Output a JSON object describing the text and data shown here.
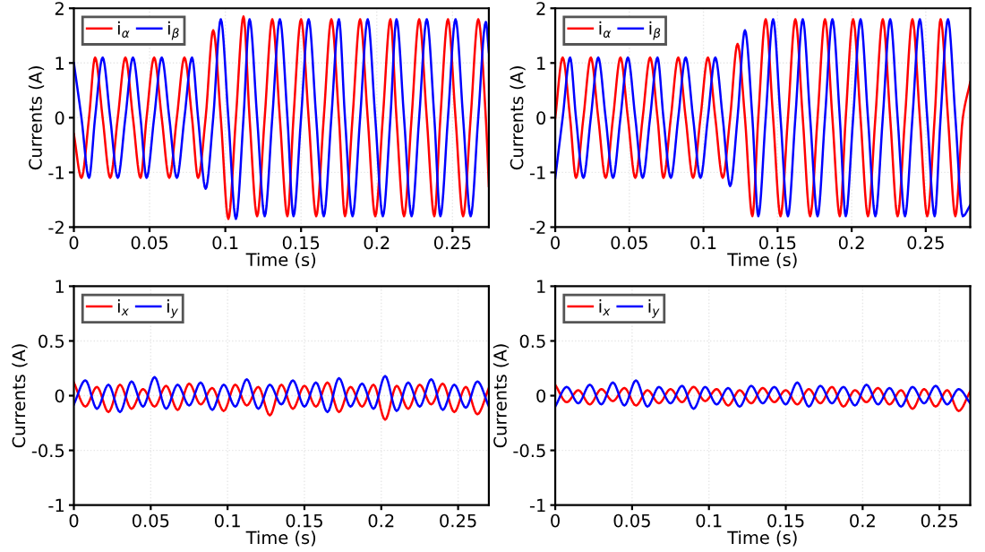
{
  "chart_data": [
    {
      "type": "line",
      "xlabel": "Time (s)",
      "ylabel": "Currents (A)",
      "xlim": [
        0,
        0.274
      ],
      "ylim": [
        -2,
        2
      ],
      "xticks": [
        0,
        0.05,
        0.1,
        0.15,
        0.2,
        0.25
      ],
      "yticks": [
        -2,
        -1,
        0,
        1,
        2
      ],
      "grid": true,
      "legend": "top left",
      "x": [
        0,
        0.005,
        0.01,
        0.014,
        0.019,
        0.024,
        0.029,
        0.034,
        0.039,
        0.044,
        0.048,
        0.053,
        0.058,
        0.063,
        0.068,
        0.073,
        0.078,
        0.082,
        0.087,
        0.092,
        0.097,
        0.102,
        0.107,
        0.112,
        0.116,
        0.121,
        0.126,
        0.131,
        0.136,
        0.141,
        0.145,
        0.15,
        0.155,
        0.16,
        0.165,
        0.17,
        0.175,
        0.179,
        0.184,
        0.189,
        0.194,
        0.199,
        0.204,
        0.209,
        0.213,
        0.218,
        0.223,
        0.228,
        0.233,
        0.238,
        0.242,
        0.247,
        0.252,
        0.257,
        0.262,
        0.267,
        0.272,
        0.274
      ],
      "series": [
        {
          "name": "i$_{α}$",
          "color": "#ff0000",
          "values": [
            -0.3,
            -1.1,
            0,
            1.1,
            0,
            -1.1,
            0,
            1.1,
            0,
            -1.1,
            0,
            1.1,
            0,
            -1.1,
            0,
            1.1,
            0,
            -1.1,
            0,
            1.6,
            0,
            -1.85,
            0,
            1.85,
            0,
            -1.8,
            0,
            1.8,
            0,
            -1.8,
            0,
            1.8,
            0,
            -1.8,
            0,
            1.8,
            0,
            -1.8,
            0,
            1.8,
            0,
            -1.8,
            0,
            1.8,
            0,
            -1.8,
            0,
            1.8,
            0,
            -1.8,
            0,
            1.8,
            0,
            -1.8,
            0,
            1.8,
            0,
            -1.25
          ]
        },
        {
          "name": "i$_{β}$",
          "color": "#0000ff",
          "values": [
            1.0,
            0,
            -1.1,
            0,
            1.1,
            0,
            -1.1,
            0,
            1.1,
            0,
            -1.1,
            0,
            1.1,
            0,
            -1.1,
            0,
            1.1,
            0,
            -1.3,
            0,
            1.8,
            0,
            -1.85,
            0,
            1.8,
            0,
            -1.8,
            0,
            1.8,
            0,
            -1.8,
            0,
            1.8,
            0,
            -1.8,
            0,
            1.8,
            0,
            -1.8,
            0,
            1.8,
            0,
            -1.8,
            0,
            1.8,
            0,
            -1.8,
            0,
            1.8,
            0,
            -1.8,
            0,
            1.8,
            0,
            -1.8,
            0,
            1.75,
            1.2
          ]
        }
      ]
    },
    {
      "type": "line",
      "xlabel": "Time (s)",
      "ylabel": "Currents (A)",
      "xlim": [
        0,
        0.28
      ],
      "ylim": [
        -2,
        2
      ],
      "xticks": [
        0,
        0.05,
        0.1,
        0.15,
        0.2,
        0.25
      ],
      "yticks": [
        -2,
        -1,
        0,
        1,
        2
      ],
      "grid": true,
      "legend": "top left",
      "x": [
        0,
        0.005,
        0.01,
        0.014,
        0.019,
        0.024,
        0.029,
        0.034,
        0.039,
        0.044,
        0.049,
        0.054,
        0.059,
        0.064,
        0.069,
        0.073,
        0.078,
        0.083,
        0.088,
        0.093,
        0.098,
        0.103,
        0.108,
        0.113,
        0.118,
        0.123,
        0.128,
        0.133,
        0.137,
        0.142,
        0.147,
        0.152,
        0.157,
        0.162,
        0.167,
        0.172,
        0.177,
        0.182,
        0.187,
        0.192,
        0.196,
        0.201,
        0.206,
        0.211,
        0.216,
        0.221,
        0.226,
        0.231,
        0.236,
        0.241,
        0.246,
        0.251,
        0.256,
        0.26,
        0.265,
        0.27,
        0.275,
        0.28
      ],
      "series": [
        {
          "name": "i$_{α}$",
          "color": "#ff0000",
          "values": [
            0,
            1.1,
            0,
            -1.1,
            0,
            1.1,
            0,
            -1.1,
            0,
            1.1,
            0,
            -1.1,
            0,
            1.1,
            0,
            -1.1,
            0,
            1.1,
            0,
            -1.1,
            0,
            1.1,
            0,
            -1.1,
            0,
            1.35,
            0,
            -1.8,
            0,
            1.8,
            0,
            -1.8,
            0,
            1.8,
            0,
            -1.8,
            0,
            1.8,
            0,
            -1.8,
            0,
            1.8,
            0,
            -1.8,
            0,
            1.8,
            0,
            -1.8,
            0,
            1.8,
            0,
            -1.8,
            0,
            1.8,
            0,
            -1.8,
            0,
            0.65
          ]
        },
        {
          "name": "i$_{β}$",
          "color": "#0000ff",
          "values": [
            -1.1,
            0,
            1.1,
            0,
            -1.1,
            0,
            1.1,
            0,
            -1.1,
            0,
            1.1,
            0,
            -1.1,
            0,
            1.1,
            0,
            -1.1,
            0,
            1.1,
            0,
            -1.1,
            0,
            1.1,
            0,
            -1.25,
            0,
            1.6,
            0,
            -1.8,
            0,
            1.8,
            0,
            -1.8,
            0,
            1.8,
            0,
            -1.8,
            0,
            1.8,
            0,
            -1.8,
            0,
            1.8,
            0,
            -1.8,
            0,
            1.8,
            0,
            -1.8,
            0,
            1.8,
            0,
            -1.8,
            0,
            1.8,
            0,
            -1.8,
            -1.6
          ]
        }
      ]
    },
    {
      "type": "line",
      "xlabel": "Time (s)",
      "ylabel": "Currents (A)",
      "xlim": [
        0,
        0.27
      ],
      "ylim": [
        -1,
        1
      ],
      "xticks": [
        0,
        0.05,
        0.1,
        0.15,
        0.2,
        0.25
      ],
      "yticks": [
        -1,
        -0.5,
        0,
        0.5,
        1
      ],
      "grid": true,
      "legend": "top left",
      "x": [
        0,
        0.0075,
        0.015,
        0.0225,
        0.03,
        0.0375,
        0.045,
        0.0525,
        0.06,
        0.0675,
        0.075,
        0.0825,
        0.09,
        0.0975,
        0.105,
        0.1125,
        0.12,
        0.1275,
        0.135,
        0.1425,
        0.15,
        0.1575,
        0.165,
        0.1725,
        0.18,
        0.1875,
        0.195,
        0.2025,
        0.21,
        0.2175,
        0.225,
        0.2325,
        0.24,
        0.2475,
        0.255,
        0.2625,
        0.27
      ],
      "series": [
        {
          "name": "i$_{x}$",
          "color": "#ff0000",
          "values": [
            0.12,
            -0.1,
            0.08,
            -0.15,
            0.1,
            -0.12,
            0.06,
            -0.1,
            0.09,
            -0.13,
            0.11,
            -0.08,
            0.07,
            -0.14,
            0.1,
            -0.09,
            0.08,
            -0.18,
            0.1,
            -0.12,
            0.09,
            -0.1,
            0.12,
            -0.15,
            0.08,
            -0.1,
            0.1,
            -0.22,
            0.09,
            -0.12,
            0.1,
            -0.08,
            0.11,
            -0.15,
            0.08,
            -0.17,
            0.07
          ]
        },
        {
          "name": "i$_{y}$",
          "color": "#0000ff",
          "values": [
            -0.08,
            0.14,
            -0.12,
            0.1,
            -0.15,
            0.13,
            -0.1,
            0.17,
            -0.12,
            0.1,
            -0.09,
            0.12,
            -0.13,
            0.1,
            -0.1,
            0.15,
            -0.12,
            0.1,
            -0.08,
            0.14,
            -0.1,
            0.12,
            -0.15,
            0.16,
            -0.1,
            0.11,
            -0.12,
            0.18,
            -0.14,
            0.12,
            -0.1,
            0.15,
            -0.13,
            0.1,
            -0.11,
            0.13,
            -0.1
          ]
        }
      ]
    },
    {
      "type": "line",
      "xlabel": "Time (s)",
      "ylabel": "Currents (A)",
      "xlim": [
        0,
        0.27
      ],
      "ylim": [
        -1,
        1
      ],
      "xticks": [
        0,
        0.05,
        0.1,
        0.15,
        0.2,
        0.25
      ],
      "yticks": [
        -1,
        -0.5,
        0,
        0.5,
        1
      ],
      "grid": true,
      "legend": "top left",
      "x": [
        0,
        0.0075,
        0.015,
        0.0225,
        0.03,
        0.0375,
        0.045,
        0.0525,
        0.06,
        0.0675,
        0.075,
        0.0825,
        0.09,
        0.0975,
        0.105,
        0.1125,
        0.12,
        0.1275,
        0.135,
        0.1425,
        0.15,
        0.1575,
        0.165,
        0.1725,
        0.18,
        0.1875,
        0.195,
        0.2025,
        0.21,
        0.2175,
        0.225,
        0.2325,
        0.24,
        0.2475,
        0.255,
        0.2625,
        0.27
      ],
      "series": [
        {
          "name": "i$_{x}$",
          "color": "#ff0000",
          "values": [
            0.1,
            -0.06,
            0.05,
            -0.08,
            0.06,
            -0.05,
            0.07,
            -0.09,
            0.05,
            -0.07,
            0.06,
            -0.06,
            0.08,
            -0.05,
            0.06,
            -0.09,
            0.05,
            -0.07,
            0.07,
            -0.06,
            0.05,
            -0.08,
            0.06,
            -0.07,
            0.08,
            -0.1,
            0.05,
            -0.06,
            0.07,
            -0.08,
            0.05,
            -0.12,
            0.06,
            -0.1,
            0.05,
            -0.14,
            0.04
          ]
        },
        {
          "name": "i$_{y}$",
          "color": "#0000ff",
          "values": [
            -0.1,
            0.08,
            -0.07,
            0.1,
            -0.08,
            0.12,
            -0.09,
            0.14,
            -0.1,
            0.08,
            -0.07,
            0.09,
            -0.12,
            0.08,
            -0.08,
            0.07,
            -0.1,
            0.09,
            -0.07,
            0.08,
            -0.08,
            0.12,
            -0.1,
            0.09,
            -0.07,
            0.08,
            -0.09,
            0.1,
            -0.08,
            0.07,
            -0.1,
            0.08,
            -0.07,
            0.09,
            -0.08,
            0.06,
            -0.07
          ]
        }
      ]
    }
  ]
}
